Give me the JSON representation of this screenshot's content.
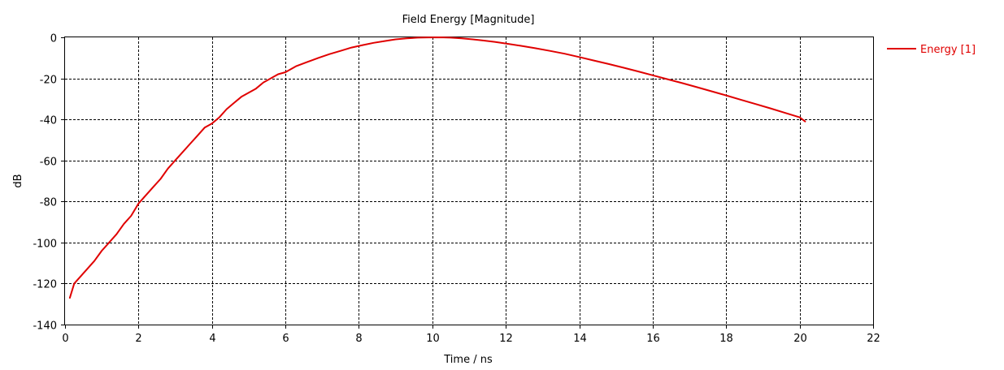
{
  "chart_data": {
    "type": "line",
    "title": "Field Energy [Magnitude]",
    "xlabel": "Time / ns",
    "ylabel": "dB",
    "xlim": [
      0,
      22
    ],
    "ylim": [
      -140,
      0
    ],
    "x_ticks": [
      "0",
      "2",
      "4",
      "6",
      "8",
      "10",
      "12",
      "14",
      "16",
      "18",
      "20",
      "22"
    ],
    "y_ticks": [
      "0",
      "-20",
      "-40",
      "-60",
      "-80",
      "-100",
      "-120",
      "-140"
    ],
    "x_tick_values": [
      0,
      2,
      4,
      6,
      8,
      10,
      12,
      14,
      16,
      18,
      20,
      22
    ],
    "y_tick_values": [
      0,
      -20,
      -40,
      -60,
      -80,
      -100,
      -120,
      -140
    ],
    "grid": true,
    "grid_style": "dotted",
    "legend_position": "right",
    "series": [
      {
        "name": "Energy [1]",
        "color": "#e00000",
        "x": [
          0.13,
          0.25,
          0.4,
          0.6,
          0.8,
          1.0,
          1.2,
          1.4,
          1.6,
          1.8,
          2.0,
          2.2,
          2.4,
          2.6,
          2.8,
          3.0,
          3.2,
          3.4,
          3.6,
          3.8,
          4.0,
          4.2,
          4.4,
          4.6,
          4.8,
          5.0,
          5.2,
          5.4,
          5.6,
          5.8,
          6.0,
          6.3,
          6.6,
          6.9,
          7.2,
          7.5,
          7.8,
          8.1,
          8.4,
          8.7,
          9.0,
          9.3,
          9.6,
          9.9,
          10.2,
          10.5,
          10.8,
          11.1,
          11.4,
          11.7,
          12.0,
          12.4,
          12.8,
          13.2,
          13.6,
          14.0,
          14.4,
          14.8,
          15.2,
          15.6,
          16.0,
          16.4,
          16.8,
          17.2,
          17.6,
          18.0,
          18.4,
          18.8,
          19.2,
          19.6,
          20.0,
          20.15
        ],
        "values": [
          -127,
          -120,
          -117,
          -113,
          -109,
          -104,
          -100,
          -96,
          -91,
          -87,
          -81,
          -77,
          -73,
          -69,
          -64,
          -60,
          -56,
          -52,
          -48,
          -44,
          -42,
          -39,
          -35,
          -32,
          -29,
          -27,
          -25,
          -22,
          -20,
          -18,
          -17,
          -14,
          -12,
          -10,
          -8.2,
          -6.6,
          -5.0,
          -3.8,
          -2.7,
          -1.8,
          -1.0,
          -0.5,
          -0.15,
          -0.02,
          0,
          -0.15,
          -0.5,
          -1.0,
          -1.6,
          -2.2,
          -3.0,
          -4.1,
          -5.3,
          -6.6,
          -8.0,
          -9.6,
          -11.3,
          -13.0,
          -14.8,
          -16.6,
          -18.5,
          -20.4,
          -22.3,
          -24.3,
          -26.3,
          -28.3,
          -30.4,
          -32.5,
          -34.6,
          -36.8,
          -39.0,
          -41.0
        ]
      }
    ]
  }
}
